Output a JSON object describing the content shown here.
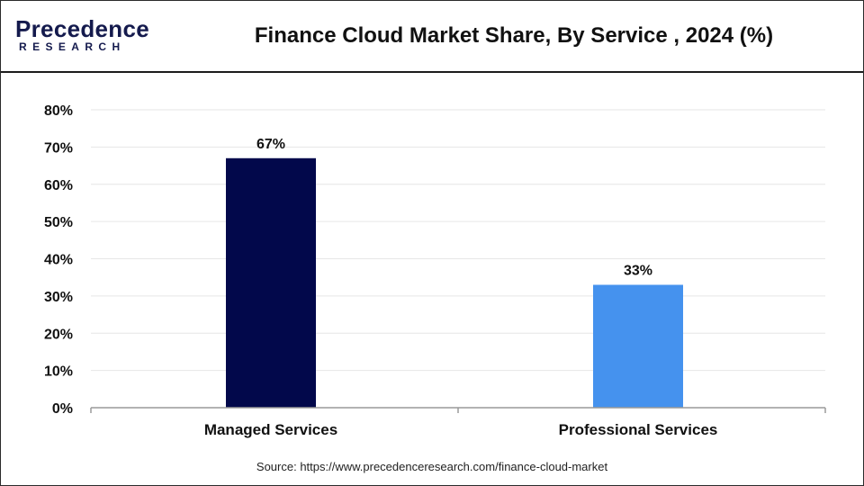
{
  "brand": {
    "name": "Precedence",
    "sub": "RESEARCH"
  },
  "source": "Source: https://www.precedenceresearch.com/finance-cloud-market",
  "colors": {
    "title": "#111111",
    "axis": "#9a9a9a",
    "grid": "#e6e6e6",
    "brand": "#141a4d"
  },
  "chart_data": {
    "type": "bar",
    "title": "Finance Cloud Market Share, By Service , 2024 (%)",
    "xlabel": "",
    "ylabel": "",
    "categories": [
      "Managed Services",
      "Professional Services"
    ],
    "values": [
      67,
      33
    ],
    "data_labels": [
      "67%",
      "33%"
    ],
    "bar_colors": [
      "#02084b",
      "#4592ee"
    ],
    "ylim": [
      0,
      80
    ],
    "yticks": [
      0,
      10,
      20,
      30,
      40,
      50,
      60,
      70,
      80
    ],
    "ytick_labels": [
      "0%",
      "10%",
      "20%",
      "30%",
      "40%",
      "50%",
      "60%",
      "70%",
      "80%"
    ],
    "grid": true,
    "legend": "none"
  }
}
